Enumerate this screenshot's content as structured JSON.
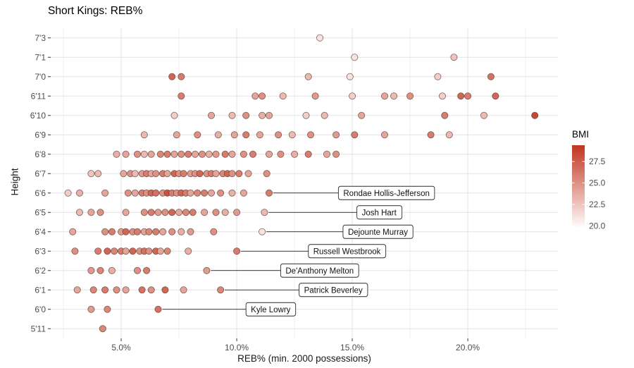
{
  "chart_data": {
    "type": "scatter",
    "title": "Short Kings: REB%",
    "xlabel": "REB% (min. 2000 possessions)",
    "ylabel": "Height",
    "grid": true,
    "legend_position": "right",
    "xlim": [
      1.95,
      23.9
    ],
    "x_ticks": [
      {
        "value": 5,
        "label": "5.0%"
      },
      {
        "value": 10,
        "label": "10.0%"
      },
      {
        "value": 15,
        "label": "15.0%"
      },
      {
        "value": 20,
        "label": "20.0%"
      }
    ],
    "x_minor": [
      2.5,
      7.5,
      12.5,
      17.5,
      22.5
    ],
    "y_categories": [
      "5'11",
      "6'0",
      "6'1",
      "6'2",
      "6'3",
      "6'4",
      "6'5",
      "6'6",
      "6'7",
      "6'8",
      "6'9",
      "6'10",
      "6'11",
      "7'0",
      "7'1",
      "7'3"
    ],
    "colors": {
      "grid_major": "#e3e3e3",
      "grid_minor": "#f0f0f0",
      "axis_text": "#4d4d4d",
      "tick": "#333333"
    },
    "point_style": {
      "radius": 4.6,
      "stroke": "#5a3d32"
    },
    "legend": {
      "title": "BMI",
      "domain": [
        19.7,
        29.4
      ],
      "low_color": "#FFFFFF",
      "high_color": "#C1351F",
      "ticks": [
        {
          "value": 27.5,
          "label": "27.5"
        },
        {
          "value": 25.0,
          "label": "25.0"
        },
        {
          "value": 22.5,
          "label": "22.5"
        },
        {
          "value": 20.0,
          "label": "20.0"
        }
      ]
    },
    "rows": [
      {
        "h": "5'11",
        "pts": [
          [
            4.2,
            25.5
          ]
        ]
      },
      {
        "h": "6'0",
        "pts": [
          [
            3.7,
            24.5
          ],
          [
            4.4,
            25.5
          ],
          [
            6.6,
            26.5
          ]
        ]
      },
      {
        "h": "6'1",
        "pts": [
          [
            3.1,
            24
          ],
          [
            3.8,
            25.5
          ],
          [
            4.3,
            26
          ],
          [
            4.8,
            25
          ],
          [
            5.2,
            24
          ],
          [
            5.9,
            26.5
          ],
          [
            6.3,
            25
          ],
          [
            6.9,
            27
          ],
          [
            7.7,
            24
          ],
          [
            9.3,
            25.5
          ]
        ]
      },
      {
        "h": "6'2",
        "pts": [
          [
            3.7,
            24.5
          ],
          [
            4.1,
            25.5
          ],
          [
            4.6,
            23.5
          ],
          [
            5.7,
            25
          ],
          [
            6.1,
            26
          ],
          [
            8.7,
            24.5
          ]
        ]
      },
      {
        "h": "6'3",
        "pts": [
          [
            3.0,
            25
          ],
          [
            4.0,
            26
          ],
          [
            4.4,
            27
          ],
          [
            4.7,
            25.5
          ],
          [
            5.0,
            26
          ],
          [
            5.2,
            24
          ],
          [
            5.5,
            27
          ],
          [
            5.8,
            25
          ],
          [
            6.0,
            26.5
          ],
          [
            6.2,
            25
          ],
          [
            6.5,
            27
          ],
          [
            6.7,
            24
          ],
          [
            7.0,
            25.5
          ],
          [
            7.9,
            23.5
          ],
          [
            10.0,
            26
          ]
        ]
      },
      {
        "h": "6'4",
        "pts": [
          [
            2.9,
            24
          ],
          [
            4.3,
            25
          ],
          [
            4.6,
            26
          ],
          [
            5.0,
            24.5
          ],
          [
            5.2,
            27
          ],
          [
            5.5,
            25
          ],
          [
            5.7,
            26
          ],
          [
            6.0,
            24
          ],
          [
            6.2,
            25.5
          ],
          [
            6.5,
            26
          ],
          [
            6.8,
            24
          ],
          [
            7.2,
            25
          ],
          [
            7.6,
            23.5
          ],
          [
            8.0,
            24.5
          ],
          [
            9.0,
            25
          ],
          [
            11.1,
            21
          ]
        ]
      },
      {
        "h": "6'5",
        "pts": [
          [
            3.2,
            23
          ],
          [
            3.7,
            24
          ],
          [
            4.1,
            25
          ],
          [
            5.2,
            24
          ],
          [
            6.0,
            25
          ],
          [
            6.3,
            26
          ],
          [
            6.6,
            24.5
          ],
          [
            6.9,
            25
          ],
          [
            7.2,
            27
          ],
          [
            7.5,
            24
          ],
          [
            7.8,
            25.5
          ],
          [
            8.1,
            26
          ],
          [
            8.6,
            24
          ],
          [
            9.1,
            25
          ],
          [
            9.5,
            23.5
          ],
          [
            10.0,
            24.5
          ],
          [
            11.2,
            23
          ]
        ]
      },
      {
        "h": "6'6",
        "pts": [
          [
            2.7,
            22
          ],
          [
            3.2,
            23.5
          ],
          [
            4.3,
            24
          ],
          [
            5.3,
            25
          ],
          [
            5.6,
            24
          ],
          [
            5.9,
            26
          ],
          [
            6.1,
            25
          ],
          [
            6.3,
            27
          ],
          [
            6.5,
            26.5
          ],
          [
            6.8,
            25
          ],
          [
            7.0,
            28
          ],
          [
            7.2,
            26
          ],
          [
            7.4,
            25
          ],
          [
            7.6,
            27
          ],
          [
            7.8,
            26
          ],
          [
            8.0,
            24
          ],
          [
            8.3,
            25.5
          ],
          [
            8.6,
            26
          ],
          [
            8.9,
            24
          ],
          [
            9.3,
            25
          ],
          [
            9.8,
            23.5
          ],
          [
            10.3,
            24
          ],
          [
            11.4,
            26
          ]
        ]
      },
      {
        "h": "6'7",
        "pts": [
          [
            3.7,
            22.5
          ],
          [
            4.0,
            23
          ],
          [
            5.1,
            24
          ],
          [
            5.4,
            25
          ],
          [
            5.6,
            23
          ],
          [
            5.9,
            24.5
          ],
          [
            6.1,
            26
          ],
          [
            6.3,
            24
          ],
          [
            6.5,
            25
          ],
          [
            6.8,
            26
          ],
          [
            7.0,
            24
          ],
          [
            7.3,
            27
          ],
          [
            7.5,
            25
          ],
          [
            7.7,
            26
          ],
          [
            8.0,
            24.5
          ],
          [
            8.2,
            25
          ],
          [
            8.4,
            27
          ],
          [
            8.7,
            25
          ],
          [
            8.9,
            26
          ],
          [
            9.1,
            24
          ],
          [
            9.4,
            25.5
          ],
          [
            9.6,
            27
          ],
          [
            9.8,
            25
          ],
          [
            10.1,
            26
          ],
          [
            10.5,
            24
          ],
          [
            11.3,
            25
          ]
        ]
      },
      {
        "h": "6'8",
        "pts": [
          [
            4.8,
            23.5
          ],
          [
            5.2,
            24
          ],
          [
            5.7,
            25
          ],
          [
            6.0,
            23
          ],
          [
            6.3,
            24
          ],
          [
            6.7,
            25.5
          ],
          [
            7.0,
            26
          ],
          [
            7.3,
            24
          ],
          [
            7.6,
            25
          ],
          [
            7.9,
            26
          ],
          [
            8.2,
            24
          ],
          [
            8.5,
            25
          ],
          [
            8.8,
            23.5
          ],
          [
            9.1,
            24.5
          ],
          [
            9.5,
            26
          ],
          [
            9.8,
            24
          ],
          [
            10.3,
            25
          ],
          [
            10.7,
            26
          ],
          [
            11.4,
            24
          ],
          [
            11.9,
            25
          ],
          [
            12.5,
            23.5
          ],
          [
            13.1,
            26
          ],
          [
            13.9,
            24
          ],
          [
            14.3,
            25
          ]
        ]
      },
      {
        "h": "6'9",
        "pts": [
          [
            6.0,
            23
          ],
          [
            7.4,
            24
          ],
          [
            8.3,
            25
          ],
          [
            9.2,
            23.5
          ],
          [
            9.9,
            24
          ],
          [
            10.4,
            26
          ],
          [
            11.0,
            24
          ],
          [
            11.8,
            25
          ],
          [
            12.4,
            23
          ],
          [
            13.2,
            25
          ],
          [
            14.3,
            24.5
          ],
          [
            15.1,
            26
          ],
          [
            16.4,
            24
          ],
          [
            18.4,
            26
          ],
          [
            19.2,
            23
          ]
        ]
      },
      {
        "h": "6'10",
        "pts": [
          [
            7.3,
            22
          ],
          [
            8.9,
            24
          ],
          [
            9.8,
            23
          ],
          [
            10.4,
            25
          ],
          [
            11.1,
            23.5
          ],
          [
            11.4,
            24
          ],
          [
            13.0,
            22
          ],
          [
            13.8,
            23
          ],
          [
            15.4,
            24
          ],
          [
            19.0,
            26
          ],
          [
            20.7,
            23
          ],
          [
            22.9,
            28.5
          ]
        ]
      },
      {
        "h": "6'11",
        "pts": [
          [
            7.6,
            26
          ],
          [
            10.8,
            24
          ],
          [
            11.1,
            25
          ],
          [
            12.0,
            23
          ],
          [
            13.4,
            24.5
          ],
          [
            15.0,
            22
          ],
          [
            16.4,
            24
          ],
          [
            16.8,
            23
          ],
          [
            17.5,
            25
          ],
          [
            18.9,
            22
          ],
          [
            19.7,
            27
          ],
          [
            20.0,
            26
          ],
          [
            21.2,
            27
          ]
        ]
      },
      {
        "h": "7'0",
        "pts": [
          [
            7.2,
            27
          ],
          [
            7.6,
            26
          ],
          [
            13.1,
            23
          ],
          [
            14.9,
            21
          ],
          [
            18.7,
            22
          ],
          [
            21.0,
            26.5
          ]
        ]
      },
      {
        "h": "7'1",
        "pts": [
          [
            15.1,
            21
          ],
          [
            19.4,
            22.5
          ]
        ]
      },
      {
        "h": "7'3",
        "pts": [
          [
            13.6,
            21
          ]
        ]
      }
    ],
    "annotations": [
      {
        "label": "Rondae Hollis-Jefferson",
        "h": "6'6",
        "x": 11.4,
        "lx": 14.4
      },
      {
        "label": "Josh Hart",
        "h": "6'5",
        "x": 11.2,
        "lx": 15.2
      },
      {
        "label": "Dejounte Murray",
        "h": "6'4",
        "x": 11.1,
        "lx": 14.6
      },
      {
        "label": "Russell Westbrook",
        "h": "6'3",
        "x": 10.0,
        "lx": 13.1
      },
      {
        "label": "De'Anthony Melton",
        "h": "6'2",
        "x": 8.7,
        "lx": 11.9
      },
      {
        "label": "Patrick Beverley",
        "h": "6'1",
        "x": 9.3,
        "lx": 12.7
      },
      {
        "label": "Kyle Lowry",
        "h": "6'0",
        "x": 6.6,
        "lx": 10.4
      }
    ]
  }
}
